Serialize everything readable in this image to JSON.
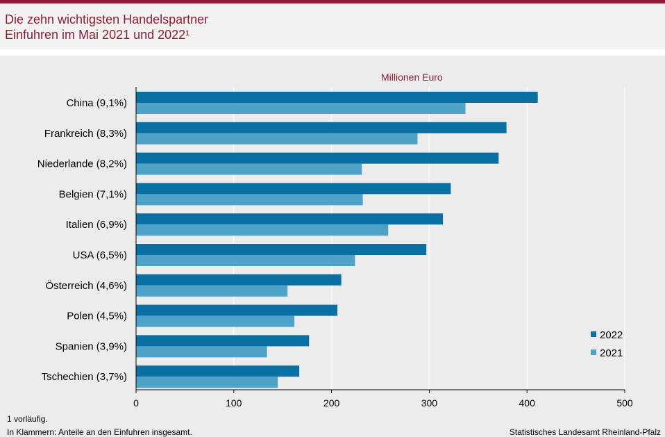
{
  "header": {
    "title_line1": "Die zehn wichtigsten Handelspartner",
    "title_line2": "Einfuhren im Mai 2021 und 2022¹"
  },
  "footer": {
    "note1": "1 vorläufig.",
    "note2": "In Klammern: Anteile an den Einfuhren  insgesamt.",
    "source": "Statistisches Landesamt Rheinland-Pfalz"
  },
  "colors": {
    "accent": "#8c1d33",
    "series_2022": "#0a6fa2",
    "series_2021": "#4fa3c8"
  },
  "chart_data": {
    "type": "bar",
    "orientation": "horizontal",
    "unit_label": "Millionen  Euro",
    "categories": [
      "China (9,1%)",
      "Frankreich (8,3%)",
      "Niederlande (8,2%)",
      "Belgien (7,1%)",
      "Italien (6,9%)",
      "USA (6,5%)",
      "Österreich (4,6%)",
      "Polen (4,5%)",
      "Spanien (3,9%)",
      "Tschechien (3,7%)"
    ],
    "series": [
      {
        "name": "2022",
        "values": [
          411,
          379,
          371,
          322,
          314,
          297,
          210,
          206,
          177,
          167
        ]
      },
      {
        "name": "2021",
        "values": [
          337,
          288,
          231,
          232,
          258,
          224,
          155,
          162,
          134,
          145
        ]
      }
    ],
    "xlim": [
      0,
      500
    ],
    "xticks": [
      "0",
      "100",
      "200",
      "300",
      "400",
      "500"
    ],
    "grid": "vertical",
    "legend_position": "right"
  }
}
